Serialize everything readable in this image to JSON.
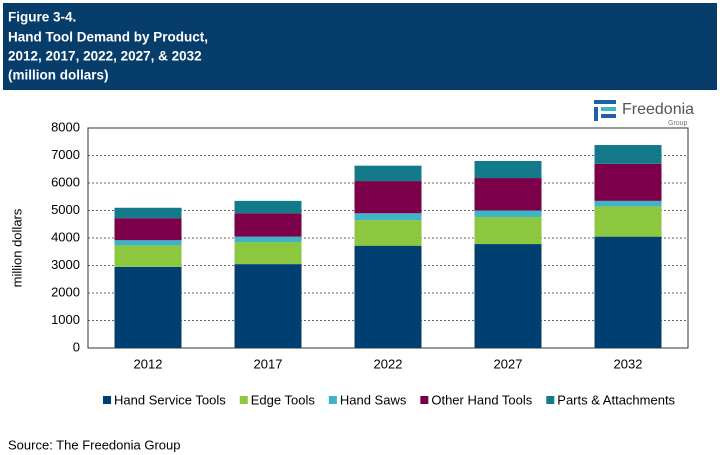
{
  "header": {
    "figure": "Figure 3-4.",
    "title_lines": [
      "Hand Tool Demand by Product,",
      "2012, 2017, 2022, 2027, & 2032"
    ],
    "subtitle": "(million dollars)"
  },
  "logo": {
    "name": "Freedonia",
    "sub": "Group"
  },
  "source": "Source: The Freedonia Group",
  "chart_data": {
    "type": "stacked_bar",
    "y_label": "million dollars",
    "categories": [
      "2012",
      "2017",
      "2022",
      "2027",
      "2032"
    ],
    "series": [
      {
        "name": "Hand Service Tools",
        "color": "#003f72",
        "values": [
          2950,
          3050,
          3720,
          3780,
          4050
        ]
      },
      {
        "name": "Edge Tools",
        "color": "#8dc63f",
        "values": [
          780,
          800,
          930,
          980,
          1100
        ]
      },
      {
        "name": "Hand Saws",
        "color": "#3fb4c4",
        "values": [
          190,
          200,
          250,
          240,
          200
        ]
      },
      {
        "name": "Other Hand Tools",
        "color": "#7b0049",
        "values": [
          800,
          850,
          1170,
          1180,
          1350
        ]
      },
      {
        "name": "Parts & Attachments",
        "color": "#137a8a",
        "values": [
          380,
          450,
          560,
          620,
          680
        ]
      }
    ],
    "ylim": [
      0,
      8000
    ],
    "yticks": [
      0,
      1000,
      2000,
      3000,
      4000,
      5000,
      6000,
      7000,
      8000
    ],
    "grid": true,
    "legend": "bottom"
  }
}
